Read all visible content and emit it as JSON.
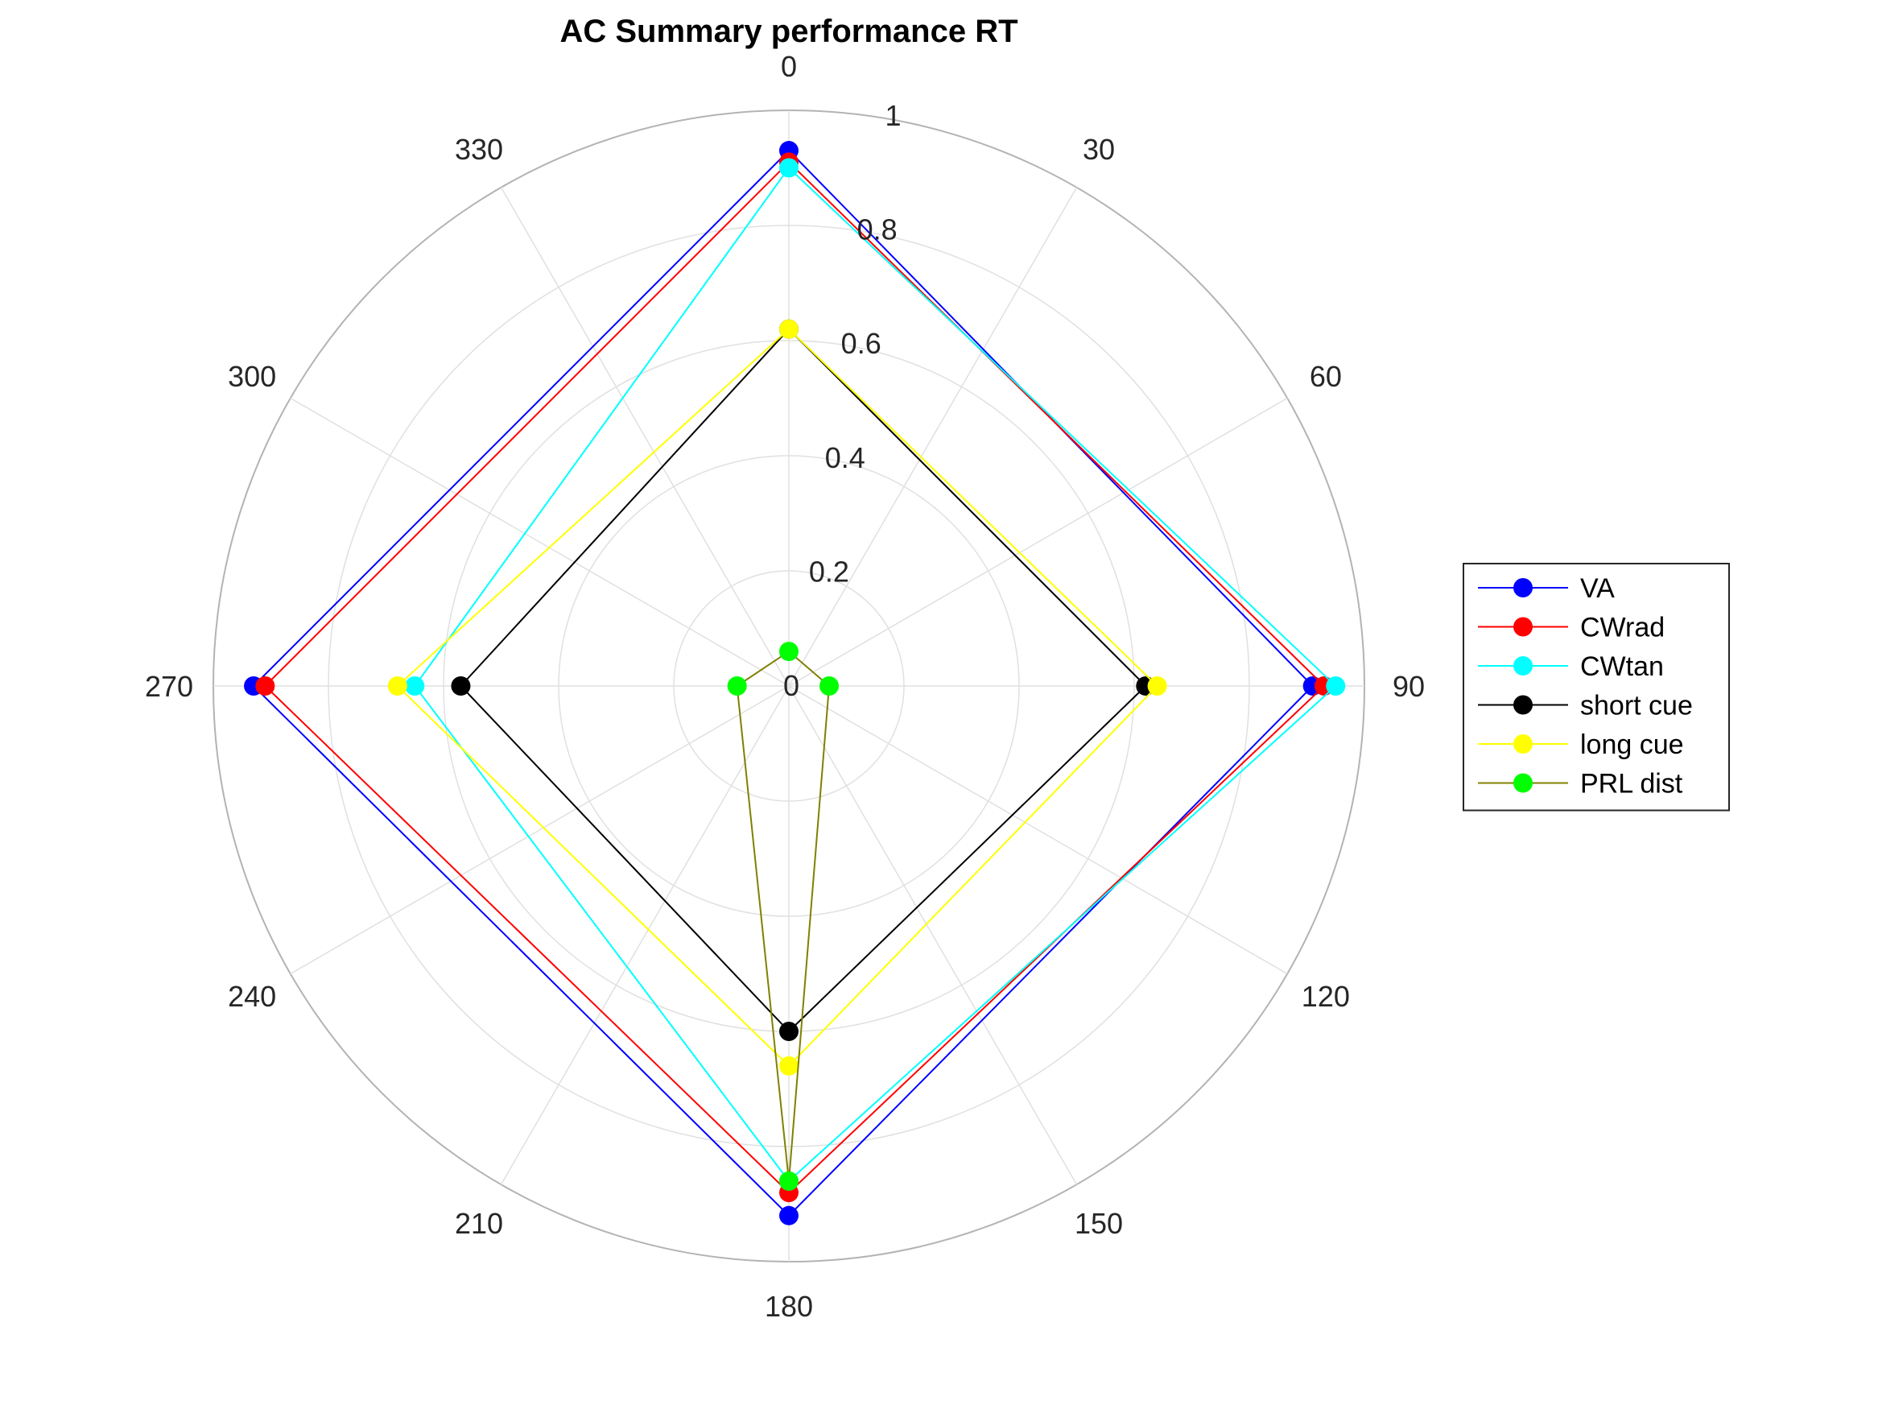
{
  "chart_data": {
    "type": "polar-line",
    "title": "AC Summary performance RT",
    "theta_direction": "clockwise",
    "theta_zero": "top",
    "theta_ticks": [
      0,
      30,
      60,
      90,
      120,
      150,
      180,
      210,
      240,
      270,
      300,
      330
    ],
    "theta_tick_labels": [
      "0",
      "30",
      "60",
      "90",
      "120",
      "150",
      "180",
      "210",
      "240",
      "270",
      "300",
      "330"
    ],
    "rlim": [
      0,
      1
    ],
    "r_ticks": [
      0,
      0.2,
      0.4,
      0.6,
      0.8,
      1
    ],
    "r_tick_labels": [
      "0",
      "0.2",
      "0.4",
      "0.6",
      "0.8",
      "1"
    ],
    "grid": true,
    "legend_position": "right",
    "theta": [
      0,
      90,
      180,
      270
    ],
    "series": [
      {
        "name": "VA",
        "color": "#0000ff",
        "r": [
          0.93,
          0.91,
          0.92,
          0.93
        ]
      },
      {
        "name": "CWrad",
        "color": "#ff0000",
        "r": [
          0.91,
          0.93,
          0.88,
          0.91
        ]
      },
      {
        "name": "CWtan",
        "color": "#00ffff",
        "r": [
          0.9,
          0.95,
          0.86,
          0.65
        ]
      },
      {
        "name": "short cue",
        "color": "#000000",
        "r": [
          0.62,
          0.62,
          0.6,
          0.57
        ]
      },
      {
        "name": "long cue",
        "color": "#ffff00",
        "r": [
          0.62,
          0.64,
          0.66,
          0.68
        ]
      },
      {
        "name": "PRL dist",
        "color": "#00ff00",
        "line_color": "#808000",
        "r": [
          0.06,
          0.07,
          0.86,
          0.09
        ]
      }
    ]
  }
}
